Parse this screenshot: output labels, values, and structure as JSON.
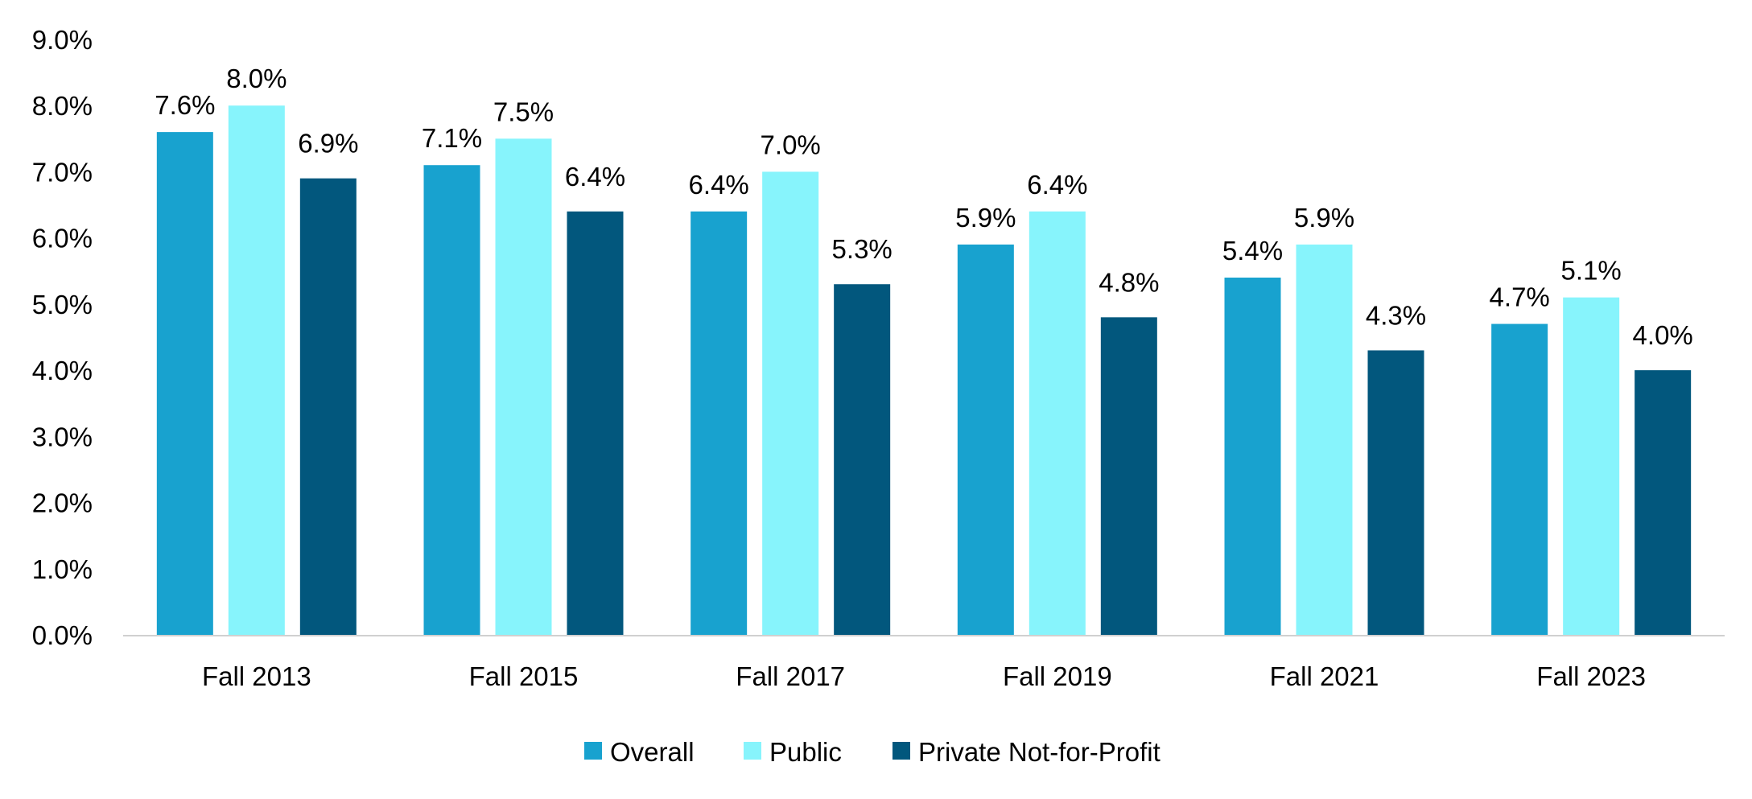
{
  "chart_data": {
    "type": "bar",
    "title": "",
    "xlabel": "",
    "ylabel": "",
    "ylim": [
      0,
      9
    ],
    "ytick_step": 1,
    "value_format": "percent_1dp",
    "y_ticks": [
      "0.0%",
      "1.0%",
      "2.0%",
      "3.0%",
      "4.0%",
      "5.0%",
      "6.0%",
      "7.0%",
      "8.0%",
      "9.0%"
    ],
    "categories": [
      "Fall 2013",
      "Fall 2015",
      "Fall 2017",
      "Fall 2019",
      "Fall 2021",
      "Fall 2023"
    ],
    "series": [
      {
        "name": "Overall",
        "color": "#18A2CF",
        "values": [
          7.6,
          7.1,
          6.4,
          5.9,
          5.4,
          4.7
        ],
        "labels": [
          "7.6%",
          "7.1%",
          "6.4%",
          "5.9%",
          "5.4%",
          "4.7%"
        ]
      },
      {
        "name": "Public",
        "color": "#87F4FC",
        "values": [
          8.0,
          7.5,
          7.0,
          6.4,
          5.9,
          5.1
        ],
        "labels": [
          "8.0%",
          "7.5%",
          "7.0%",
          "6.4%",
          "5.9%",
          "5.1%"
        ]
      },
      {
        "name": "Private Not-for-Profit",
        "color": "#02577D",
        "values": [
          6.9,
          6.4,
          5.3,
          4.8,
          4.3,
          4.0
        ],
        "labels": [
          "6.9%",
          "6.4%",
          "5.3%",
          "4.8%",
          "4.3%",
          "4.0%"
        ]
      }
    ],
    "legend_position": "bottom-center",
    "grid": false,
    "axis_color": "#D0D0D0"
  }
}
